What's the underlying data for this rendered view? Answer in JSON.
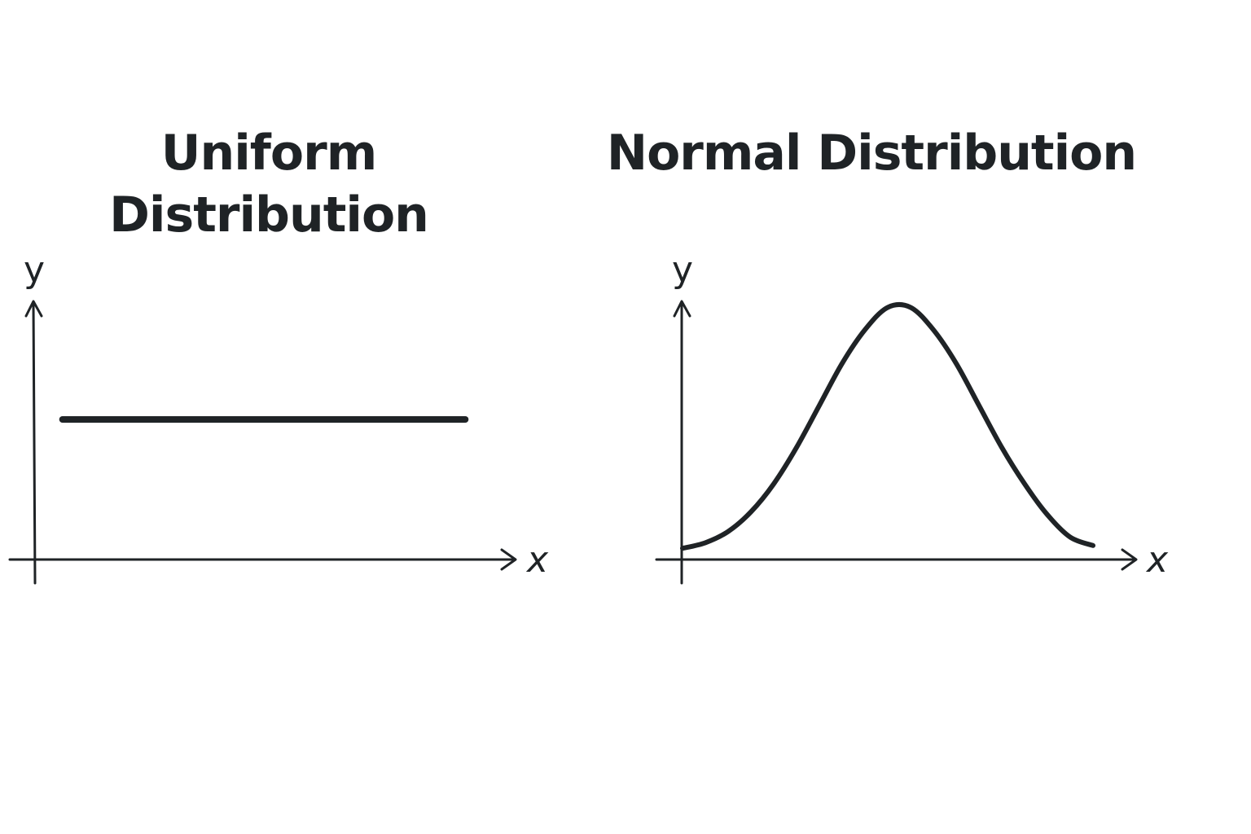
{
  "colors": {
    "ink": "#1f2326",
    "background": "#ffffff"
  },
  "chart_data": [
    {
      "type": "line",
      "title_lines": [
        "Uniform",
        "Distribution"
      ],
      "xlabel": "x",
      "ylabel": "y",
      "axes_arrows": true,
      "ticks": false,
      "grid": false,
      "xlim": [
        0,
        10
      ],
      "ylim": [
        0,
        1
      ],
      "series": [
        {
          "x": [
            0.6,
            9.4
          ],
          "y": [
            0.5,
            0.5
          ]
        }
      ]
    },
    {
      "type": "line",
      "title_lines": [
        "Normal Distribution"
      ],
      "xlabel": "x",
      "ylabel": "y",
      "axes_arrows": true,
      "ticks": false,
      "grid": false,
      "xlim": [
        0,
        10
      ],
      "ylim": [
        0,
        1
      ],
      "series": [
        {
          "x": [
            0.0,
            0.5,
            1.0,
            1.5,
            2.0,
            2.5,
            3.0,
            3.5,
            4.0,
            4.5,
            5.0,
            5.5,
            6.0,
            6.5,
            7.0,
            7.5,
            8.0,
            8.5,
            9.0
          ],
          "y": [
            0.04,
            0.06,
            0.1,
            0.17,
            0.27,
            0.4,
            0.55,
            0.7,
            0.82,
            0.9,
            0.9,
            0.82,
            0.7,
            0.55,
            0.4,
            0.27,
            0.16,
            0.08,
            0.05
          ]
        }
      ]
    }
  ]
}
